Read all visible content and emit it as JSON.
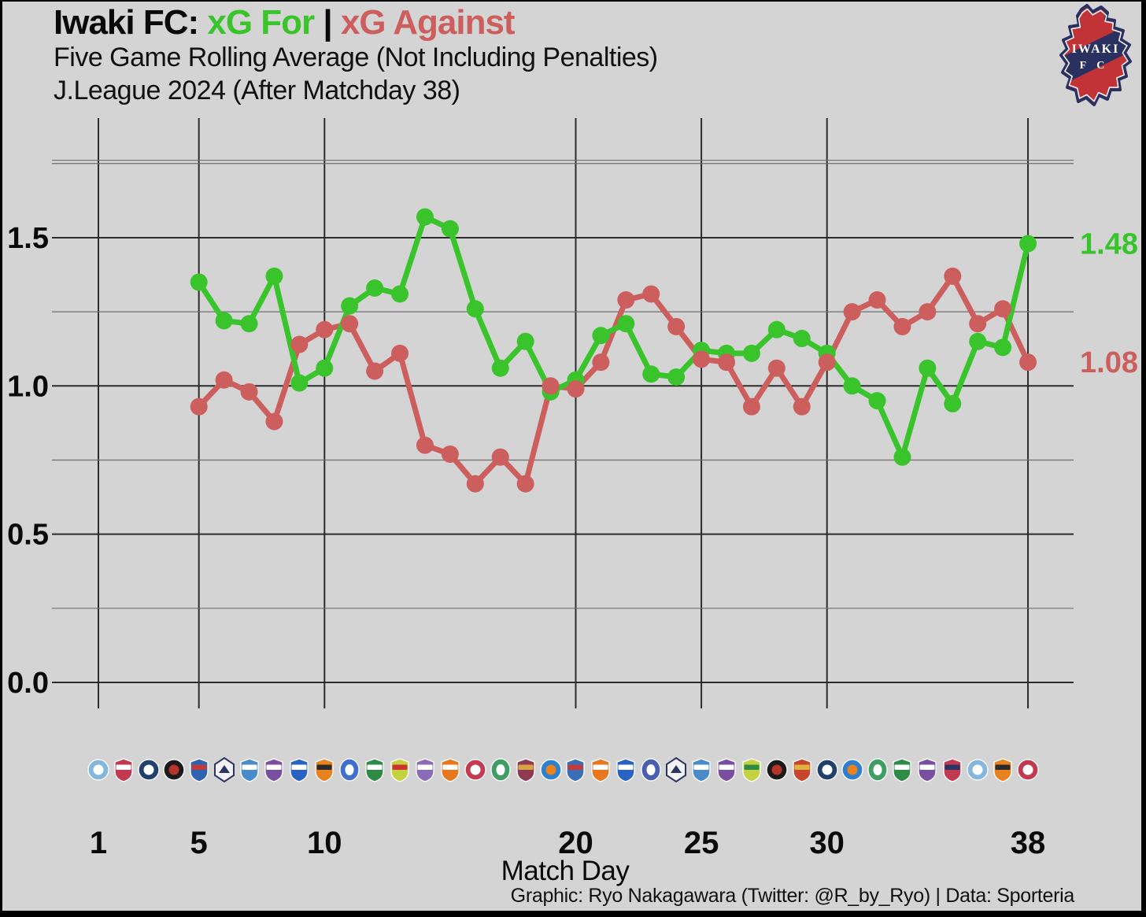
{
  "header": {
    "title_team": "Iwaki FC:",
    "title_for": " xG For ",
    "title_separator": "|",
    "title_against": " xG Against",
    "subtitle_line1": "Five Game Rolling Average (Not Including Penalties)",
    "subtitle_line2": "J.League 2024 (After Matchday 38)"
  },
  "club_badge": {
    "line1": "IWAKI",
    "line2": "F C"
  },
  "colors": {
    "background": "#d4d4d4",
    "green": "#3ac42c",
    "red": "#cd5e5e",
    "grid_major": "#2b2b2b",
    "grid_minor": "#6e6e6e",
    "text": "#0a0a0a",
    "badge_red": "#c13336",
    "badge_navy": "#2a3060"
  },
  "axes": {
    "y_tick_labels": [
      "1.5",
      "1.0",
      "0.5",
      "0.0"
    ],
    "x_tick_labels": [
      "1",
      "5",
      "10",
      "20",
      "25",
      "30",
      "38"
    ],
    "xlabel": "Match Day"
  },
  "caption": "Graphic: Ryo Nakagawara (Twitter: @R_by_Ryo) | Data: Sporteria",
  "chart_data": {
    "type": "line",
    "title": "Iwaki FC: xG For | xG Against",
    "xlabel": "Match Day",
    "ylabel": "",
    "grid": true,
    "legend_position": "in-title",
    "x_ticks": [
      1,
      5,
      10,
      20,
      25,
      30,
      38
    ],
    "y_ticks": [
      0.0,
      0.5,
      1.0,
      1.5
    ],
    "y_minor_ticks": [
      0.25,
      0.75,
      1.25,
      1.75
    ],
    "xlim": [
      -0.9,
      39.8
    ],
    "ylim": [
      -0.09,
      1.9
    ],
    "x": [
      5,
      6,
      7,
      8,
      9,
      10,
      11,
      12,
      13,
      14,
      15,
      16,
      17,
      18,
      19,
      20,
      21,
      22,
      23,
      24,
      25,
      26,
      27,
      28,
      29,
      30,
      31,
      32,
      33,
      34,
      35,
      36,
      37,
      38
    ],
    "series": [
      {
        "name": "xG For",
        "color": "#3ac42c",
        "values": [
          1.35,
          1.22,
          1.21,
          1.37,
          1.01,
          1.06,
          1.27,
          1.33,
          1.31,
          1.57,
          1.53,
          1.26,
          1.06,
          1.15,
          0.98,
          1.02,
          1.17,
          1.21,
          1.04,
          1.03,
          1.12,
          1.11,
          1.11,
          1.19,
          1.16,
          1.11,
          1.0,
          0.95,
          0.76,
          1.06,
          0.94,
          1.15,
          1.13,
          1.48
        ]
      },
      {
        "name": "xG Against",
        "color": "#cd5e5e",
        "values": [
          0.93,
          1.02,
          0.98,
          0.88,
          1.14,
          1.19,
          1.21,
          1.05,
          1.11,
          0.8,
          0.77,
          0.67,
          0.76,
          0.67,
          1.0,
          0.99,
          1.08,
          1.29,
          1.31,
          1.2,
          1.09,
          1.08,
          0.93,
          1.06,
          0.93,
          1.08,
          1.25,
          1.29,
          1.2,
          1.25,
          1.37,
          1.21,
          1.26,
          1.08
        ]
      }
    ],
    "end_labels": {
      "xg_for": "1.48",
      "xg_against": "1.08"
    }
  },
  "opponent_logos": [
    {
      "shape": "circle",
      "c1": "#85b6dc",
      "c2": "#ffffff"
    },
    {
      "shape": "shield",
      "c1": "#c13a52",
      "c2": "#ffffff"
    },
    {
      "shape": "circle",
      "c1": "#22406e",
      "c2": "#ffffff"
    },
    {
      "shape": "circle",
      "c1": "#1b1b1b",
      "c2": "#b5342c"
    },
    {
      "shape": "shield",
      "c1": "#2f63b0",
      "c2": "#c23b3b"
    },
    {
      "shape": "hex",
      "c1": "#f2f2f6",
      "c2": "#2a3560"
    },
    {
      "shape": "shield",
      "c1": "#4a8cc9",
      "c2": "#ffffff"
    },
    {
      "shape": "shield",
      "c1": "#7a4fa0",
      "c2": "#ffffff"
    },
    {
      "shape": "shield",
      "c1": "#2a62c4",
      "c2": "#ffffff"
    },
    {
      "shape": "shield",
      "c1": "#e8821e",
      "c2": "#2b2b2b"
    },
    {
      "shape": "oval",
      "c1": "#3f6fd0",
      "c2": "#ffffff"
    },
    {
      "shape": "shield",
      "c1": "#2e8b46",
      "c2": "#ffffff"
    },
    {
      "shape": "shield",
      "c1": "#c3d23e",
      "c2": "#cc3333"
    },
    {
      "shape": "shield",
      "c1": "#8a6bb5",
      "c2": "#ffffff"
    },
    {
      "shape": "shield",
      "c1": "#e8771e",
      "c2": "#ffffff"
    },
    {
      "shape": "circle",
      "c1": "#c23b50",
      "c2": "#ffffff"
    },
    {
      "shape": "oval",
      "c1": "#3e9e63",
      "c2": "#ffffff"
    },
    {
      "shape": "shield",
      "c1": "#8e3a52",
      "c2": "#d9a441"
    },
    {
      "shape": "circle",
      "c1": "#2f7fd0",
      "c2": "#e8821e"
    },
    {
      "shape": "shield",
      "c1": "#3a6fb5",
      "c2": "#c23b3b"
    },
    {
      "shape": "shield",
      "c1": "#e8771e",
      "c2": "#ffffff"
    },
    {
      "shape": "shield",
      "c1": "#2a62c4",
      "c2": "#ffffff"
    },
    {
      "shape": "oval",
      "c1": "#4a5fb0",
      "c2": "#ffffff"
    },
    {
      "shape": "hex",
      "c1": "#f2f2f6",
      "c2": "#2a3560"
    },
    {
      "shape": "shield",
      "c1": "#4a8cc9",
      "c2": "#ffffff"
    },
    {
      "shape": "shield",
      "c1": "#7a4fa0",
      "c2": "#ffffff"
    },
    {
      "shape": "shield",
      "c1": "#c3d23e",
      "c2": "#2e8b46"
    },
    {
      "shape": "circle",
      "c1": "#1b1b1b",
      "c2": "#b5342c"
    },
    {
      "shape": "shield",
      "c1": "#c8452c",
      "c2": "#e0b23e"
    },
    {
      "shape": "circle",
      "c1": "#22406e",
      "c2": "#ffffff"
    },
    {
      "shape": "circle",
      "c1": "#2f7fd0",
      "c2": "#e8821e"
    },
    {
      "shape": "oval",
      "c1": "#3e9e63",
      "c2": "#ffffff"
    },
    {
      "shape": "shield",
      "c1": "#2e8b46",
      "c2": "#ffffff"
    },
    {
      "shape": "shield",
      "c1": "#7a4fa0",
      "c2": "#ffffff"
    },
    {
      "shape": "shield",
      "c1": "#c13a52",
      "c2": "#2a3560"
    },
    {
      "shape": "circle",
      "c1": "#85b6dc",
      "c2": "#ffffff"
    },
    {
      "shape": "shield",
      "c1": "#e8821e",
      "c2": "#2b2b2b"
    },
    {
      "shape": "circle",
      "c1": "#c13a52",
      "c2": "#ffffff"
    }
  ]
}
